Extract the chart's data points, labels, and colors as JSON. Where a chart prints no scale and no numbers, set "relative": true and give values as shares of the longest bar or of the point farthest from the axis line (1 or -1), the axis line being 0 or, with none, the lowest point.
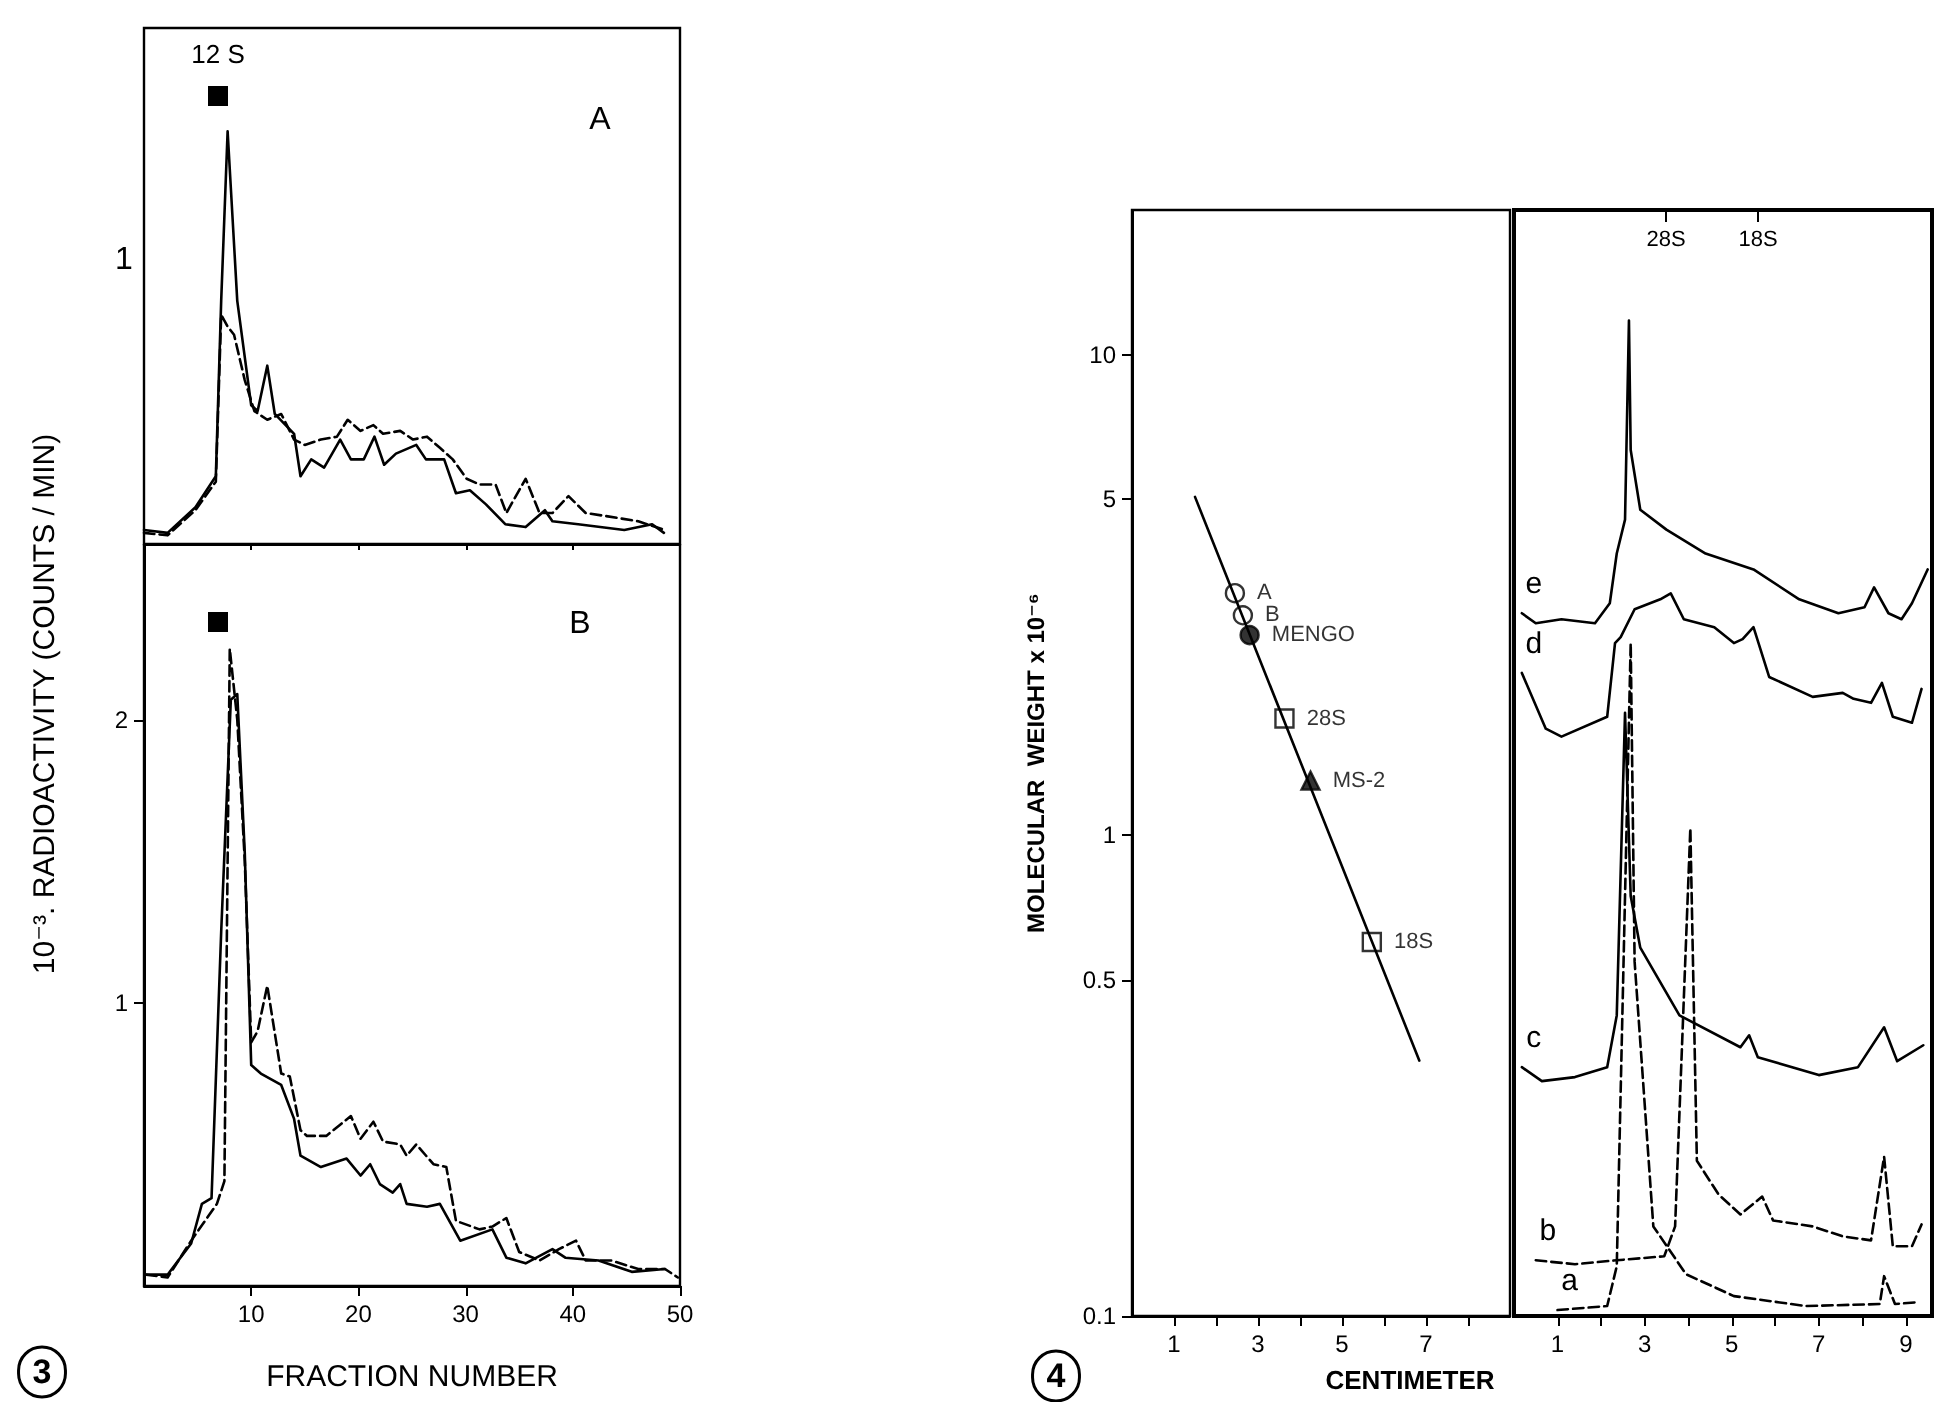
{
  "chart_data": [
    {
      "type": "line",
      "relative": true,
      "annotations": [
        "A",
        "12 S",
        "1"
      ],
      "xlim": [
        0,
        50
      ],
      "xticks": [
        {
          "value": 10,
          "label": null
        },
        {
          "value": 20,
          "label": null
        },
        {
          "value": 30,
          "label": null
        },
        {
          "value": 40,
          "label": null
        }
      ],
      "tick_labels": false,
      "grid": false,
      "series": [
        {
          "color": "#000000",
          "line_style": "solid",
          "x": [
            0,
            2.2,
            4.8,
            6.7,
            7.2,
            7.8,
            8.7,
            10,
            10.6,
            11.5,
            12.2,
            14,
            14.6,
            15.6,
            16.8,
            18.3,
            19.3,
            20.5,
            21.5,
            22.4,
            23.5,
            25.4,
            26.3,
            28,
            29.1,
            30.4,
            31.9,
            33.7,
            35.6,
            37.4,
            38.1,
            40.5,
            44.8,
            47.4,
            48.5
          ],
          "values": [
            0.034,
            0.027,
            0.089,
            0.164,
            0.589,
            1,
            0.589,
            0.336,
            0.322,
            0.432,
            0.315,
            0.267,
            0.164,
            0.205,
            0.185,
            0.253,
            0.205,
            0.205,
            0.26,
            0.192,
            0.219,
            0.24,
            0.205,
            0.205,
            0.123,
            0.13,
            0.096,
            0.048,
            0.041,
            0.082,
            0.055,
            0.048,
            0.034,
            0.048,
            0.027
          ]
        },
        {
          "color": "#000000",
          "line_style": "dashed",
          "x": [
            0,
            2.2,
            4.8,
            6.7,
            7.2,
            7.8,
            8.4,
            9.4,
            10.3,
            11.5,
            12.8,
            14,
            15,
            16.5,
            18,
            19,
            20.2,
            21.4,
            22.3,
            23.9,
            25.1,
            26.4,
            27.6,
            28.8,
            30.1,
            31.3,
            32.8,
            33.8,
            35.6,
            36.9,
            38.1,
            39.6,
            41.2,
            43,
            46.1,
            48.6
          ],
          "values": [
            0.027,
            0.021,
            0.082,
            0.151,
            0.555,
            0.527,
            0.507,
            0.397,
            0.322,
            0.301,
            0.315,
            0.253,
            0.24,
            0.253,
            0.26,
            0.301,
            0.274,
            0.288,
            0.267,
            0.274,
            0.253,
            0.26,
            0.233,
            0.205,
            0.158,
            0.144,
            0.144,
            0.075,
            0.158,
            0.075,
            0.075,
            0.116,
            0.075,
            0.068,
            0.055,
            0.034
          ]
        }
      ]
    },
    {
      "type": "line",
      "annotations": [
        "B",
        "3"
      ],
      "xlabel": "FRACTION NUMBER",
      "ylabel": "10⁻³. RADIOACTIVITY (COUNTS / MIN)",
      "xlim": [
        0,
        50
      ],
      "xticks": [
        10,
        20,
        30,
        40,
        50
      ],
      "ylim": [
        0,
        2.62
      ],
      "yticks": [
        1,
        2
      ],
      "grid": false,
      "series": [
        {
          "color": "#000000",
          "line_style": "solid",
          "x": [
            0.2,
            2.2,
            4.4,
            5.4,
            6.3,
            7.2,
            8.1,
            8.7,
            9.4,
            10,
            10.9,
            12.8,
            14,
            14.6,
            16.5,
            18.9,
            20.2,
            21.1,
            22,
            23.2,
            23.9,
            24.5,
            26.4,
            27.6,
            29.5,
            32.5,
            33.8,
            35.6,
            38.1,
            39.3,
            42.4,
            45.5,
            48.6
          ],
          "values": [
            0.04,
            0.04,
            0.15,
            0.29,
            0.31,
            1.25,
            2.07,
            2.09,
            1.53,
            0.78,
            0.75,
            0.71,
            0.59,
            0.46,
            0.42,
            0.45,
            0.39,
            0.43,
            0.36,
            0.33,
            0.36,
            0.29,
            0.28,
            0.29,
            0.16,
            0.2,
            0.1,
            0.08,
            0.13,
            0.1,
            0.09,
            0.05,
            0.06
          ]
        },
        {
          "color": "#000000",
          "line_style": "dashed",
          "x": [
            0.2,
            2.2,
            4.4,
            6.8,
            7.5,
            8,
            8.7,
            9.4,
            10,
            10.6,
            11.5,
            12.8,
            13.6,
            14.6,
            15.2,
            17,
            19.3,
            20.2,
            21.4,
            22.3,
            23.9,
            24.5,
            25.4,
            27,
            28.2,
            29.1,
            31.3,
            32.5,
            33.8,
            35,
            36.9,
            38.7,
            40.3,
            41.2,
            43.6,
            46.1,
            48.6,
            49.8
          ],
          "values": [
            0.04,
            0.03,
            0.16,
            0.29,
            0.37,
            2.25,
            2,
            1.5,
            0.86,
            0.9,
            1.06,
            0.75,
            0.74,
            0.55,
            0.53,
            0.53,
            0.6,
            0.52,
            0.58,
            0.51,
            0.5,
            0.46,
            0.5,
            0.43,
            0.42,
            0.23,
            0.2,
            0.21,
            0.24,
            0.12,
            0.09,
            0.13,
            0.16,
            0.09,
            0.09,
            0.06,
            0.06,
            0.03
          ]
        }
      ]
    },
    {
      "type": "scatter",
      "annotations": [
        "4"
      ],
      "xlabel": "CENTIMETER",
      "ylabel": "MOLECULAR  WEIGHT x 10⁻⁶",
      "log": "y",
      "xlim": [
        0,
        9
      ],
      "xticks": [
        1,
        {
          "value": 2,
          "label": null
        },
        3,
        {
          "value": 4,
          "label": null
        },
        5,
        {
          "value": 6,
          "label": null
        },
        7,
        {
          "value": 8,
          "label": null
        }
      ],
      "ylim": [
        0.1,
        20
      ],
      "yticks": [
        0.1,
        0.5,
        1,
        5,
        10
      ],
      "grid": false,
      "series": [
        {
          "type": "line",
          "marker": "none",
          "color": "#000000",
          "x": [
            1.5,
            6.84
          ],
          "values": [
            5.06,
            0.34
          ]
        },
        {
          "name": "A",
          "marker": "circle",
          "color": "#ffffff",
          "x": [
            2.45
          ],
          "values": [
            3.19
          ]
        },
        {
          "name": "B",
          "marker": "circle",
          "color": "#ffffff",
          "x": [
            2.64
          ],
          "values": [
            2.87
          ]
        },
        {
          "name": "MENGO",
          "marker": "circle",
          "color": "#000000",
          "x": [
            2.8
          ],
          "values": [
            2.61
          ]
        },
        {
          "name": "28S",
          "marker": "square",
          "color": "#ffffff",
          "x": [
            3.63
          ],
          "values": [
            1.75
          ]
        },
        {
          "name": "MS-2",
          "marker": "triangle",
          "color": "#000000",
          "x": [
            4.25
          ],
          "values": [
            1.3
          ]
        },
        {
          "name": "18S",
          "marker": "square",
          "color": "#ffffff",
          "x": [
            5.71
          ],
          "values": [
            0.6
          ]
        }
      ]
    },
    {
      "type": "line",
      "relative": true,
      "marker": "none",
      "annotations": [
        "28S",
        "18S"
      ],
      "xlim": [
        0,
        9.6
      ],
      "xticks": [
        1,
        {
          "value": 2,
          "label": null
        },
        3,
        {
          "value": 4,
          "label": null
        },
        5,
        {
          "value": 6,
          "label": null
        },
        7,
        {
          "value": 8,
          "label": null
        },
        9
      ],
      "tick_labels": "x",
      "grid": false,
      "series": [
        {
          "name": "e",
          "color": "#000000",
          "line_style": "solid",
          "x": [
            0.18,
            0.5,
            1.09,
            1.86,
            2.2,
            2.36,
            2.55,
            2.64,
            2.68,
            2.9,
            3.5,
            4.4,
            5.5,
            6.55,
            7.45,
            8.05,
            8.27,
            8.6,
            8.9,
            9.14,
            9.5
          ],
          "values": [
            0.706,
            0.696,
            0.7,
            0.696,
            0.716,
            0.766,
            0.8,
            1,
            0.87,
            0.81,
            0.79,
            0.766,
            0.75,
            0.72,
            0.706,
            0.712,
            0.732,
            0.706,
            0.7,
            0.716,
            0.75
          ]
        },
        {
          "name": "d",
          "color": "#000000",
          "line_style": "solid",
          "x": [
            0.18,
            0.73,
            1.09,
            2.14,
            2.32,
            2.45,
            2.77,
            3.36,
            3.6,
            3.9,
            4.6,
            5.05,
            5.25,
            5.5,
            5.86,
            6.86,
            7.55,
            7.8,
            8.2,
            8.45,
            8.7,
            9.14,
            9.36
          ],
          "values": [
            0.646,
            0.59,
            0.582,
            0.602,
            0.676,
            0.682,
            0.71,
            0.72,
            0.726,
            0.7,
            0.692,
            0.676,
            0.68,
            0.692,
            0.642,
            0.622,
            0.626,
            0.62,
            0.616,
            0.636,
            0.602,
            0.596,
            0.63
          ]
        },
        {
          "name": "c",
          "color": "#000000",
          "line_style": "solid",
          "x": [
            0.18,
            0.64,
            1.4,
            2.14,
            2.36,
            2.55,
            2.68,
            2.9,
            3.8,
            5.2,
            5.4,
            5.6,
            7,
            7.9,
            8.5,
            8.8,
            9.4
          ],
          "values": [
            0.25,
            0.236,
            0.24,
            0.25,
            0.302,
            0.606,
            0.422,
            0.37,
            0.302,
            0.27,
            0.282,
            0.26,
            0.242,
            0.25,
            0.29,
            0.256,
            0.272
          ]
        },
        {
          "name": "b",
          "color": "#000000",
          "line_style": "dashed",
          "x": [
            0.5,
            1.4,
            2.36,
            3.45,
            3.7,
            4.05,
            4.2,
            4.7,
            5.2,
            5.7,
            5.95,
            6.86,
            7.55,
            8.2,
            8.5,
            8.7,
            9.14,
            9.36
          ],
          "values": [
            0.056,
            0.052,
            0.056,
            0.06,
            0.09,
            0.49,
            0.156,
            0.122,
            0.102,
            0.12,
            0.096,
            0.09,
            0.08,
            0.076,
            0.16,
            0.07,
            0.07,
            0.092
          ]
        },
        {
          "name": "a",
          "color": "#000000",
          "line_style": "dashed",
          "x": [
            1,
            2.14,
            2.36,
            2.55,
            2.68,
            2.77,
            3.2,
            3.95,
            5.05,
            6.7,
            8.4,
            8.5,
            8.75,
            9.3
          ],
          "values": [
            0.006,
            0.01,
            0.05,
            0.422,
            0.676,
            0.356,
            0.09,
            0.042,
            0.02,
            0.01,
            0.012,
            0.04,
            0.012,
            0.014
          ]
        }
      ]
    }
  ]
}
